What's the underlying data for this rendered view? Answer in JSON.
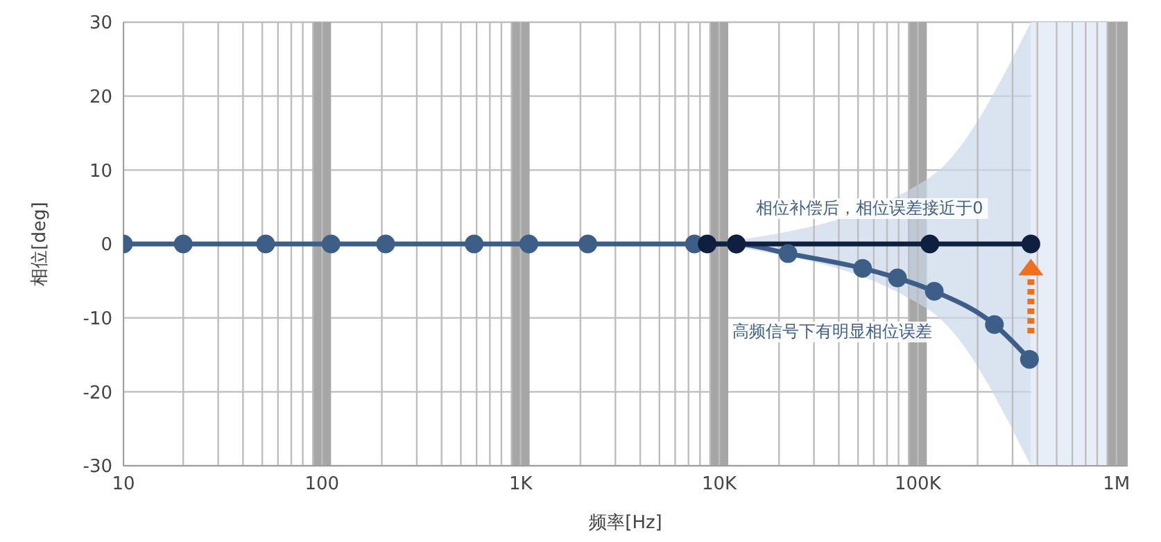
{
  "chart_data": {
    "type": "line",
    "xlabel": "频率[Hz]",
    "ylabel": "相位[deg]",
    "log": "x",
    "grid": true,
    "marker": "circle",
    "line_style": "solid",
    "xlim": [
      10,
      1140000
    ],
    "ylim": [
      -30,
      30
    ],
    "yticks": [
      -30,
      -20,
      -10,
      0,
      10,
      20,
      30
    ],
    "xticks": [
      10,
      {
        "value": 20,
        "label": null
      },
      {
        "value": 30,
        "label": null
      },
      {
        "value": 40,
        "label": null
      },
      {
        "value": 50,
        "label": null
      },
      {
        "value": 60,
        "label": null
      },
      {
        "value": 70,
        "label": null
      },
      {
        "value": 80,
        "label": null
      },
      {
        "value": 90,
        "label": null
      },
      100,
      {
        "value": 200,
        "label": null
      },
      {
        "value": 300,
        "label": null
      },
      {
        "value": 400,
        "label": null
      },
      {
        "value": 500,
        "label": null
      },
      {
        "value": 600,
        "label": null
      },
      {
        "value": 700,
        "label": null
      },
      {
        "value": 800,
        "label": null
      },
      {
        "value": 900,
        "label": null
      },
      {
        "value": 1000,
        "label": "1K"
      },
      {
        "value": 2000,
        "label": null
      },
      {
        "value": 3000,
        "label": null
      },
      {
        "value": 4000,
        "label": null
      },
      {
        "value": 5000,
        "label": null
      },
      {
        "value": 6000,
        "label": null
      },
      {
        "value": 7000,
        "label": null
      },
      {
        "value": 8000,
        "label": null
      },
      {
        "value": 9000,
        "label": null
      },
      {
        "value": 10000,
        "label": "10K"
      },
      {
        "value": 20000,
        "label": null
      },
      {
        "value": 30000,
        "label": null
      },
      {
        "value": 40000,
        "label": null
      },
      {
        "value": 50000,
        "label": null
      },
      {
        "value": 60000,
        "label": null
      },
      {
        "value": 70000,
        "label": null
      },
      {
        "value": 80000,
        "label": null
      },
      {
        "value": 90000,
        "label": null
      },
      {
        "value": 100000,
        "label": "100K"
      },
      {
        "value": 200000,
        "label": null
      },
      {
        "value": 300000,
        "label": null
      },
      {
        "value": 400000,
        "label": null
      },
      {
        "value": 500000,
        "label": null
      },
      {
        "value": 600000,
        "label": null
      },
      {
        "value": 700000,
        "label": null
      },
      {
        "value": 800000,
        "label": null
      },
      {
        "value": 900000,
        "label": null
      },
      {
        "value": 1000000,
        "label": "1M"
      }
    ],
    "series": [
      {
        "color": "#3d5f87",
        "x": [
          10,
          20,
          52,
          111,
          209,
          583,
          1100,
          2180,
          7500,
          12200,
          22200,
          52700,
          79000,
          121000,
          243000,
          365000
        ],
        "values": [
          0,
          0,
          0,
          0,
          0,
          0,
          0,
          0,
          0,
          0,
          -1.3,
          -3.3,
          -4.6,
          -6.4,
          -10.9,
          -15.6
        ]
      },
      {
        "color": "#0f1f3f",
        "x": [
          8700,
          12200,
          115000,
          371000
        ],
        "values": [
          0,
          0,
          0,
          0
        ],
        "lower": [
          0,
          -0.5,
          -9,
          -30
        ],
        "upper": [
          0,
          0.5,
          9,
          30
        ]
      }
    ],
    "bands": [
      {
        "axis": "x",
        "from": 371000,
        "to": 1000000,
        "color": "#e8eef7"
      },
      {
        "axis": "x",
        "from": 90,
        "to": 111,
        "color": "#a6a6a6"
      },
      {
        "axis": "x",
        "from": 900,
        "to": 1110,
        "color": "#a6a6a6"
      },
      {
        "axis": "x",
        "from": 9000,
        "to": 11100,
        "color": "#a6a6a6"
      },
      {
        "axis": "x",
        "from": 90000,
        "to": 111000,
        "color": "#a6a6a6"
      },
      {
        "axis": "x",
        "from": 900000,
        "to": 1140000,
        "color": "#a6a6a6"
      }
    ],
    "annotations": [
      "相位补偿后，相位误差接近于0",
      "高频信号下有明显相位误差"
    ]
  }
}
